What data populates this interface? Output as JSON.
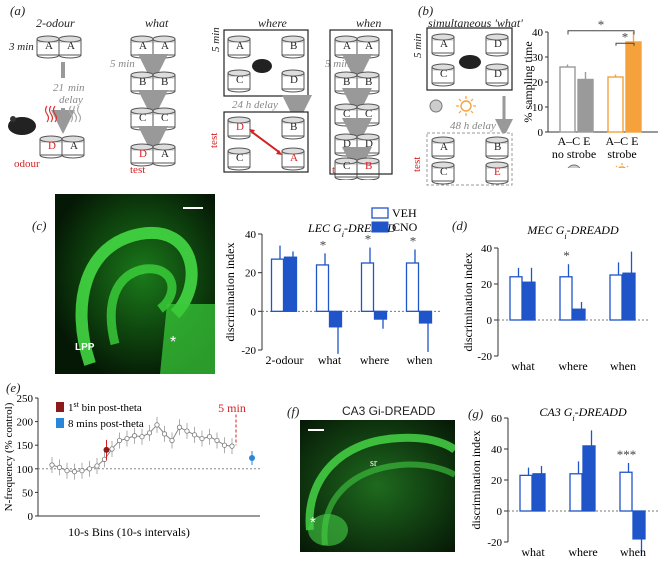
{
  "panel_a": {
    "letter": "(a)",
    "titles": {
      "two_odour": "2-odour",
      "what": "what",
      "where": "where",
      "when": "when"
    },
    "two_odour": {
      "time": "3 min",
      "delay_a": "21",
      "delay_b": "min",
      "delay_c": "delay",
      "odour": "odour"
    },
    "what": {
      "time": "5 min",
      "test": "test"
    },
    "where": {
      "time": "5 min",
      "delay": "24 h delay",
      "test": "test"
    },
    "when": {
      "time": "5 min",
      "test": "test"
    },
    "letters": {
      "A": "A",
      "B": "B",
      "C": "C",
      "D": "D",
      "E": "E"
    }
  },
  "panel_b": {
    "letter": "(b)",
    "title": "simultaneous 'what'",
    "time": "5 min",
    "delay": "48 h delay",
    "test": "test",
    "chart_data": {
      "type": "bar",
      "ylabel": "% sampling time",
      "ylim": [
        0,
        40
      ],
      "yticks": [
        "0",
        "10",
        "20",
        "30",
        "40"
      ],
      "groups": [
        "no strobe",
        "strobe"
      ],
      "category_labels": [
        "A–C E",
        "A–C E"
      ],
      "series": [
        {
          "name": "no strobe A–C",
          "values": [
            26
          ],
          "error": [
            1
          ]
        },
        {
          "name": "no strobe E",
          "values": [
            21
          ],
          "error": [
            3
          ]
        },
        {
          "name": "strobe A–C",
          "values": [
            22
          ],
          "error": [
            1
          ]
        },
        {
          "name": "strobe E",
          "values": [
            36
          ],
          "error": [
            4
          ]
        }
      ],
      "significance": [
        "*",
        "*"
      ]
    }
  },
  "panel_c": {
    "letter": "(c)",
    "image_labels": {
      "lpp": "LPP",
      "star": "*"
    },
    "chart_data": {
      "type": "bar",
      "title": "LEC Gi-DREADD",
      "ylabel": "discrimination index",
      "ylim": [
        -20,
        40
      ],
      "yticks": [
        "-20",
        "0",
        "20",
        "40"
      ],
      "categories": [
        "2-odour",
        "what",
        "where",
        "when"
      ],
      "series": [
        {
          "name": "VEH",
          "values": [
            27,
            24,
            25,
            25
          ],
          "error": [
            7,
            6,
            8,
            7
          ]
        },
        {
          "name": "CNO",
          "values": [
            28,
            -8,
            -4,
            -6
          ],
          "error": [
            3,
            14,
            5,
            15
          ]
        }
      ],
      "significance": [
        "",
        "*",
        "*",
        "*"
      ],
      "legend": [
        "VEH",
        "CNO"
      ]
    }
  },
  "panel_d": {
    "letter": "(d)",
    "chart_data": {
      "type": "bar",
      "title": "MEC Gi-DREADD",
      "ylabel": "discrimination index",
      "ylim": [
        -20,
        40
      ],
      "yticks": [
        "-20",
        "0",
        "20",
        "40"
      ],
      "categories": [
        "what",
        "where",
        "when"
      ],
      "series": [
        {
          "name": "VEH",
          "values": [
            24,
            24,
            25
          ],
          "error": [
            5,
            7,
            7
          ]
        },
        {
          "name": "CNO",
          "values": [
            21,
            6,
            26
          ],
          "error": [
            8,
            4,
            12
          ]
        }
      ],
      "significance": [
        "",
        "*",
        ""
      ]
    }
  },
  "panel_e": {
    "letter": "(e)",
    "marker": "5 min",
    "chart_data": {
      "type": "line",
      "ylabel": "N-frequency (% control)",
      "xlabel": "10-s Bins (10-s intervals)",
      "ylim": [
        0,
        250
      ],
      "yticks": [
        "0",
        "50",
        "100",
        "150",
        "200",
        "250"
      ],
      "legend": [
        "1st bin post-theta",
        "8 mins post-theta"
      ],
      "values": [
        108,
        103,
        96,
        94,
        96,
        100,
        106,
        120,
        142,
        160,
        164,
        170,
        168,
        176,
        193,
        174,
        160,
        188,
        180,
        172,
        164,
        168,
        160,
        150,
        148
      ],
      "first_bin": 140,
      "eight_min": 123
    }
  },
  "panel_f": {
    "letter": "(f)",
    "title": "CA3 Gi-DREADD",
    "image_labels": {
      "sr": "sr",
      "star": "*"
    }
  },
  "panel_g": {
    "letter": "(g)",
    "chart_data": {
      "type": "bar",
      "title": "CA3 Gi-DREADD",
      "ylabel": "discrimination index",
      "ylim": [
        -20,
        60
      ],
      "yticks": [
        "-20",
        "0",
        "20",
        "40",
        "60"
      ],
      "categories": [
        "what",
        "where",
        "when"
      ],
      "series": [
        {
          "name": "VEH",
          "values": [
            23,
            24,
            25
          ],
          "error": [
            5,
            8,
            6
          ]
        },
        {
          "name": "CNO",
          "values": [
            24,
            42,
            -18
          ],
          "error": [
            5,
            10,
            10
          ]
        }
      ],
      "significance": [
        "",
        "",
        "***"
      ]
    }
  },
  "colors": {
    "accent_blue": "#1f55c8",
    "accent_orange": "#f5a23c",
    "grey_bar": "#9a9a9a",
    "red": "#d42020",
    "green": "#3cd23c"
  }
}
